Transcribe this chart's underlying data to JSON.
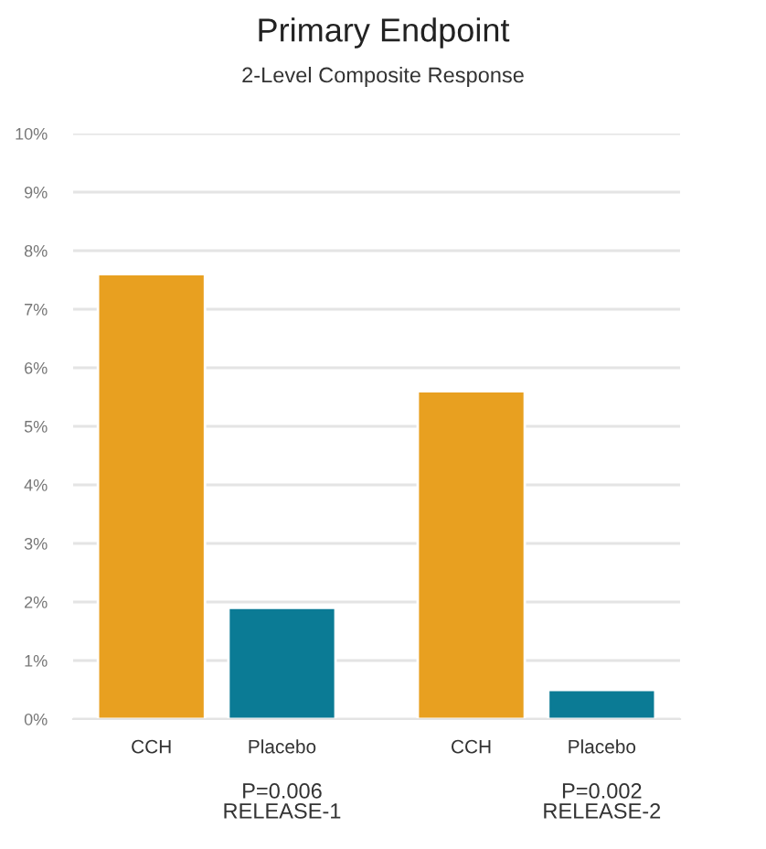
{
  "chart_data": {
    "type": "bar",
    "title": "Primary Endpoint",
    "subtitle": "2-Level Composite Response",
    "categories": [
      "CCH",
      "Placebo",
      "CCH",
      "Placebo"
    ],
    "values": [
      7.6,
      1.9,
      5.6,
      0.5
    ],
    "colors": [
      "#e8a020",
      "#0b7b95",
      "#e8a020",
      "#0b7b95"
    ],
    "ylim": [
      0,
      10
    ],
    "yticks": [
      {
        "value": 0,
        "label": "0%"
      },
      {
        "value": 1,
        "label": "1%"
      },
      {
        "value": 2,
        "label": "2%"
      },
      {
        "value": 3,
        "label": "3%"
      },
      {
        "value": 4,
        "label": "4%"
      },
      {
        "value": 5,
        "label": "5%"
      },
      {
        "value": 6,
        "label": "6%"
      },
      {
        "value": 7,
        "label": "7%"
      },
      {
        "value": 8,
        "label": "8%"
      },
      {
        "value": 9,
        "label": "9%"
      },
      {
        "value": 10,
        "label": "10%"
      }
    ],
    "grid": "y",
    "annotations": [
      "P=0.006\nRELEASE-1",
      "P=0.002\nRELEASE-2"
    ]
  }
}
